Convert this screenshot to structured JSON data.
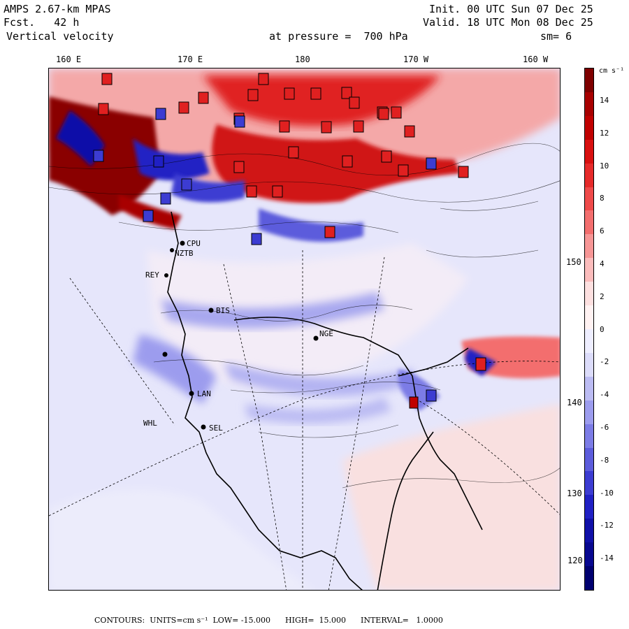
{
  "header": {
    "model": "AMPS 2.67-km MPAS",
    "forecast": "Fcst.   42 h",
    "field": "Vertical velocity",
    "init": "Init. 00 UTC Sun 07 Dec 25",
    "valid": "Valid. 18 UTC Mon 08 Dec 25",
    "pressure": "at pressure =  700 hPa",
    "smooth": "sm= 6"
  },
  "lon_labels": [
    "160 E",
    "170 E",
    "180",
    "170 W",
    "160 W"
  ],
  "lat_labels": [
    "150 W",
    "140 W",
    "130 W",
    "120 W"
  ],
  "stations": [
    "CPU",
    "NZTB",
    "REY",
    "BIS",
    "NGE",
    "LAN",
    "SEL",
    "WHL"
  ],
  "colorbar": {
    "unit": "cm s⁻¹",
    "ticks": [
      "14",
      "12",
      "10",
      "8",
      "6",
      "4",
      "2",
      "0",
      "-2",
      "-4",
      "-6",
      "-8",
      "-10",
      "-12",
      "-14"
    ],
    "colors": [
      "#7f0000",
      "#a80000",
      "#c00000",
      "#d81010",
      "#e62a2a",
      "#ef4a4a",
      "#f36e6e",
      "#f79696",
      "#fbbcbc",
      "#fde0e0",
      "#fff2f2",
      "#eeeeff",
      "#dcdcfa",
      "#bcbcf3",
      "#9c9cee",
      "#7c7ce6",
      "#5c5cdc",
      "#3c3cd2",
      "#2020c4",
      "#1010a8",
      "#080890",
      "#000070"
    ]
  },
  "footer": "CONTOURS:  UNITS=cm s⁻¹  LOW= -15.000      HIGH=  15.000      INTERVAL=   1.0000"
}
